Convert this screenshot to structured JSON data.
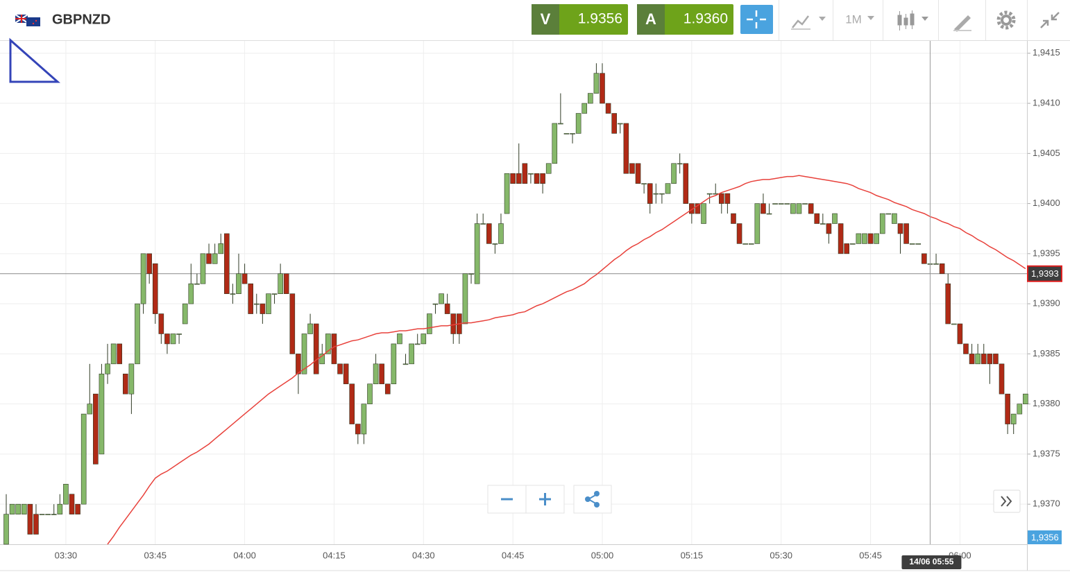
{
  "header": {
    "symbol": "GBPNZD",
    "sell_label": "V",
    "sell_price": "1.9356",
    "buy_label": "A",
    "buy_price": "1.9360",
    "timeframe": "1M"
  },
  "chart_data": {
    "type": "candlestick",
    "categories": [
      null,
      null,
      null,
      null,
      null,
      null,
      null,
      null,
      null,
      null,
      "03:30",
      null,
      null,
      null,
      null,
      null,
      null,
      null,
      null,
      null,
      null,
      null,
      null,
      null,
      null,
      "03:45",
      null,
      null,
      null,
      null,
      null,
      null,
      null,
      null,
      null,
      null,
      null,
      null,
      null,
      null,
      "04:00",
      null,
      null,
      null,
      null,
      null,
      null,
      null,
      null,
      null,
      null,
      null,
      null,
      null,
      null,
      "04:15",
      null,
      null,
      null,
      null,
      null,
      null,
      null,
      null,
      null,
      null,
      null,
      null,
      null,
      null,
      "04:30",
      null,
      null,
      null,
      null,
      null,
      null,
      null,
      null,
      null,
      null,
      null,
      null,
      null,
      null,
      "04:45",
      null,
      null,
      null,
      null,
      null,
      null,
      null,
      null,
      null,
      null,
      null,
      null,
      null,
      null,
      "05:00",
      null,
      null,
      null,
      null,
      null,
      null,
      null,
      null,
      null,
      null,
      null,
      null,
      null,
      null,
      "05:15",
      null,
      null,
      null,
      null,
      null,
      null,
      null,
      null,
      null,
      null,
      null,
      null,
      null,
      null,
      "05:30",
      null,
      null,
      null,
      null,
      null,
      null,
      null,
      null,
      null,
      null,
      null,
      null,
      null,
      null,
      "05:45",
      null,
      null,
      null,
      null,
      null,
      null,
      null,
      null,
      null,
      null,
      null,
      null,
      null,
      null,
      "06:00",
      null,
      null,
      null,
      null,
      null,
      null,
      null,
      null,
      null,
      null,
      null
    ],
    "open": [
      1.9366,
      1.9369,
      1.9369,
      1.9369,
      1.937,
      1.9369,
      1.9369,
      1.9369,
      1.9369,
      1.9369,
      1.937,
      1.9371,
      1.937,
      1.937,
      1.9379,
      1.9381,
      1.9375,
      1.9383,
      1.9384,
      1.9386,
      1.9383,
      1.9381,
      1.9384,
      1.939,
      1.9395,
      1.9394,
      1.9389,
      1.9387,
      1.9386,
      1.9387,
      1.9388,
      1.939,
      1.9392,
      1.9392,
      1.9395,
      1.9394,
      1.9395,
      1.9397,
      1.9391,
      1.9391,
      1.9393,
      1.9392,
      1.939,
      1.939,
      1.9389,
      1.9391,
      1.9391,
      1.9393,
      1.9391,
      1.9385,
      1.9383,
      1.9387,
      1.9388,
      1.9384,
      1.9385,
      1.9387,
      1.9384,
      1.9384,
      1.9382,
      1.9378,
      1.9377,
      1.938,
      1.9382,
      1.9384,
      1.9382,
      1.9382,
      1.9386,
      1.9384,
      1.9384,
      1.9386,
      1.9386,
      1.9387,
      1.939,
      1.939,
      1.939,
      1.9389,
      1.9389,
      1.9388,
      1.9393,
      1.9392,
      1.9398,
      1.9398,
      1.9396,
      1.9396,
      1.9399,
      1.9403,
      1.9403,
      1.9404,
      1.9403,
      1.9403,
      1.9403,
      1.9403,
      1.9404,
      1.9408,
      1.9407,
      1.9407,
      1.9407,
      1.9409,
      1.941,
      1.9411,
      1.9413,
      1.941,
      1.9409,
      1.9408,
      1.9408,
      1.9404,
      1.9404,
      1.9402,
      1.9402,
      1.9401,
      1.9401,
      1.9401,
      1.9402,
      1.9404,
      1.9404,
      1.94,
      1.94,
      1.9398,
      1.9401,
      1.9401,
      1.9401,
      1.9401,
      1.9399,
      1.9398,
      1.9396,
      1.9396,
      1.9396,
      1.94,
      1.9399,
      1.94,
      1.94,
      1.94,
      1.9399,
      1.9399,
      1.94,
      1.94,
      1.9399,
      1.9398,
      1.9398,
      1.9398,
      1.9398,
      1.9396,
      1.9396,
      1.9396,
      1.9396,
      1.9397,
      1.9396,
      1.9397,
      1.9399,
      1.9398,
      1.9398,
      1.9398,
      1.9396,
      1.9396,
      1.9395,
      1.9394,
      1.9394,
      1.9394,
      1.9392,
      1.9388,
      1.9388,
      1.9386,
      1.9385,
      1.9384,
      1.9385,
      1.9385,
      1.9385,
      1.9384,
      1.9381,
      1.9378,
      1.9379,
      1.938
    ],
    "high": [
      1.9371,
      1.937,
      1.937,
      1.937,
      1.937,
      1.937,
      1.9369,
      1.9369,
      1.937,
      1.9371,
      1.9372,
      1.9371,
      1.937,
      1.9379,
      1.9384,
      1.9381,
      1.9384,
      1.9386,
      1.9386,
      1.9386,
      1.9383,
      1.9384,
      1.939,
      1.9395,
      1.9395,
      1.9394,
      1.9389,
      1.9387,
      1.9387,
      1.9387,
      1.939,
      1.9394,
      1.9393,
      1.9395,
      1.9396,
      1.9396,
      1.9397,
      1.9397,
      1.9392,
      1.9395,
      1.9394,
      1.9392,
      1.9391,
      1.939,
      1.9391,
      1.9391,
      1.9394,
      1.9393,
      1.9391,
      1.9385,
      1.9387,
      1.9389,
      1.9388,
      1.9386,
      1.9387,
      1.9387,
      1.9384,
      1.9384,
      1.9382,
      1.9378,
      1.938,
      1.9382,
      1.9385,
      1.9384,
      1.9382,
      1.9386,
      1.9387,
      1.9385,
      1.9386,
      1.9387,
      1.9387,
      1.9389,
      1.939,
      1.9391,
      1.9391,
      1.9389,
      1.9389,
      1.9393,
      1.9393,
      1.9399,
      1.9399,
      1.9398,
      1.9396,
      1.9399,
      1.9403,
      1.9403,
      1.9406,
      1.9404,
      1.9403,
      1.9403,
      1.9403,
      1.9404,
      1.9408,
      1.9411,
      1.9407,
      1.9407,
      1.9409,
      1.941,
      1.9411,
      1.9414,
      1.9414,
      1.941,
      1.9409,
      1.9408,
      1.9408,
      1.9404,
      1.9404,
      1.9402,
      1.9402,
      1.9402,
      1.9401,
      1.9402,
      1.9404,
      1.9405,
      1.9404,
      1.94,
      1.94,
      1.94,
      1.9401,
      1.9402,
      1.9401,
      1.9401,
      1.9399,
      1.9398,
      1.9396,
      1.9396,
      1.94,
      1.9401,
      1.94,
      1.94,
      1.94,
      1.94,
      1.94,
      1.94,
      1.94,
      1.94,
      1.9399,
      1.9399,
      1.9398,
      1.9399,
      1.9398,
      1.9396,
      1.9396,
      1.9397,
      1.9397,
      1.9397,
      1.9397,
      1.9399,
      1.9399,
      1.9399,
      1.9398,
      1.9398,
      1.9396,
      1.9396,
      1.9395,
      1.9394,
      1.9395,
      1.9394,
      1.9393,
      1.9388,
      1.9388,
      1.9386,
      1.9386,
      1.9386,
      1.9386,
      1.9385,
      1.9385,
      1.9384,
      1.9381,
      1.9379,
      1.938,
      1.9381
    ],
    "low": [
      1.9366,
      1.9369,
      1.9369,
      1.9369,
      1.9367,
      1.9367,
      1.9369,
      1.9369,
      1.9369,
      1.9369,
      1.937,
      1.9369,
      1.9369,
      1.937,
      1.9379,
      1.9374,
      1.9375,
      1.9382,
      1.9384,
      1.9384,
      1.9381,
      1.9379,
      1.9384,
      1.9389,
      1.9392,
      1.9388,
      1.9386,
      1.9385,
      1.9386,
      1.9386,
      1.9388,
      1.939,
      1.9392,
      1.9392,
      1.9394,
      1.9394,
      1.9395,
      1.9391,
      1.939,
      1.9391,
      1.9392,
      1.9389,
      1.9389,
      1.9388,
      1.9389,
      1.939,
      1.9391,
      1.9391,
      1.9385,
      1.9381,
      1.9383,
      1.9387,
      1.9383,
      1.9384,
      1.9385,
      1.9384,
      1.9383,
      1.9382,
      1.9378,
      1.9376,
      1.9376,
      1.938,
      1.9382,
      1.9382,
      1.9381,
      1.9382,
      1.9386,
      1.9384,
      1.9384,
      1.9386,
      1.9386,
      1.9387,
      1.9389,
      1.939,
      1.9389,
      1.9386,
      1.9386,
      1.9388,
      1.9392,
      1.9392,
      1.9398,
      1.9396,
      1.9395,
      1.9396,
      1.9399,
      1.9402,
      1.9402,
      1.9402,
      1.9402,
      1.9402,
      1.9401,
      1.9403,
      1.9404,
      1.9408,
      1.9407,
      1.9406,
      1.9407,
      1.9409,
      1.941,
      1.9411,
      1.941,
      1.9409,
      1.9407,
      1.9407,
      1.9403,
      1.9403,
      1.9402,
      1.9401,
      1.9399,
      1.94,
      1.94,
      1.9401,
      1.9402,
      1.9403,
      1.94,
      1.9398,
      1.9399,
      1.9398,
      1.94,
      1.9401,
      1.9399,
      1.9399,
      1.9398,
      1.9396,
      1.9396,
      1.9396,
      1.9396,
      1.9399,
      1.9399,
      1.94,
      1.94,
      1.94,
      1.9399,
      1.9399,
      1.94,
      1.9399,
      1.9398,
      1.9398,
      1.9396,
      1.9398,
      1.9395,
      1.9395,
      1.9396,
      1.9396,
      1.9396,
      1.9396,
      1.9396,
      1.9397,
      1.9399,
      1.9398,
      1.9395,
      1.9396,
      1.9396,
      1.9396,
      1.9394,
      1.9393,
      1.9394,
      1.9393,
      1.9388,
      1.9388,
      1.9386,
      1.9385,
      1.9384,
      1.9384,
      1.9384,
      1.9382,
      1.9384,
      1.9381,
      1.9377,
      1.9377,
      1.9379,
      1.938
    ],
    "close": [
      1.9369,
      1.937,
      1.937,
      1.937,
      1.9367,
      1.9367,
      1.9369,
      1.9369,
      1.9369,
      1.937,
      1.9372,
      1.9369,
      1.9369,
      1.9379,
      1.938,
      1.9374,
      1.9383,
      1.9384,
      1.9386,
      1.9384,
      1.9381,
      1.9384,
      1.939,
      1.9395,
      1.9393,
      1.9389,
      1.9387,
      1.9386,
      1.9387,
      1.9387,
      1.939,
      1.9392,
      1.9392,
      1.9395,
      1.9394,
      1.9395,
      1.9396,
      1.9391,
      1.9391,
      1.9393,
      1.9392,
      1.9389,
      1.939,
      1.9389,
      1.9391,
      1.9391,
      1.9393,
      1.9391,
      1.9385,
      1.9383,
      1.9387,
      1.9388,
      1.9383,
      1.9385,
      1.9387,
      1.9384,
      1.9383,
      1.9382,
      1.9378,
      1.9377,
      1.938,
      1.9382,
      1.9384,
      1.9382,
      1.9381,
      1.9386,
      1.9387,
      1.9384,
      1.9386,
      1.9386,
      1.9387,
      1.9389,
      1.939,
      1.9391,
      1.9389,
      1.9387,
      1.9387,
      1.9393,
      1.9393,
      1.9398,
      1.9398,
      1.9396,
      1.9396,
      1.9398,
      1.9403,
      1.9402,
      1.9402,
      1.9402,
      1.9403,
      1.9402,
      1.9402,
      1.9404,
      1.9408,
      1.9408,
      1.9407,
      1.9407,
      1.9409,
      1.941,
      1.9411,
      1.9413,
      1.941,
      1.9409,
      1.9407,
      1.9408,
      1.9403,
      1.9403,
      1.9402,
      1.9402,
      1.94,
      1.9401,
      1.9401,
      1.9402,
      1.9404,
      1.9404,
      1.94,
      1.9399,
      1.9399,
      1.94,
      1.9401,
      1.9401,
      1.94,
      1.94,
      1.9398,
      1.9396,
      1.9396,
      1.9396,
      1.94,
      1.9399,
      1.9399,
      1.94,
      1.94,
      1.94,
      1.94,
      1.94,
      1.94,
      1.9399,
      1.9398,
      1.9398,
      1.9397,
      1.9399,
      1.9395,
      1.9395,
      1.9396,
      1.9397,
      1.9397,
      1.9396,
      1.9397,
      1.9399,
      1.9399,
      1.9399,
      1.9397,
      1.9396,
      1.9396,
      1.9396,
      1.9394,
      1.9394,
      1.9394,
      1.9393,
      1.9388,
      1.9388,
      1.9386,
      1.9385,
      1.9384,
      1.9385,
      1.9384,
      1.9384,
      1.9384,
      1.9381,
      1.9378,
      1.9379,
      1.938,
      1.9381
    ],
    "up_color": "#86b86a",
    "down_color": "#b02a16",
    "border_color": "#2f3a24",
    "lines": [
      {
        "color": "#e8413b",
        "values": [
          null,
          null,
          null,
          null,
          null,
          null,
          null,
          null,
          null,
          null,
          null,
          null,
          null,
          null,
          null,
          null,
          null,
          1.9366,
          1.93668,
          1.93677,
          1.93685,
          1.93693,
          1.93701,
          1.93709,
          1.93718,
          1.93726,
          1.9373,
          1.93733,
          1.93737,
          1.93741,
          1.93745,
          1.93749,
          1.93752,
          1.93756,
          1.9376,
          1.93765,
          1.9377,
          1.93775,
          1.9378,
          1.93785,
          1.9379,
          1.93795,
          1.938,
          1.93805,
          1.9381,
          1.93814,
          1.93818,
          1.93822,
          1.93826,
          1.93831,
          1.93835,
          1.93839,
          1.93844,
          1.93848,
          1.93853,
          1.93857,
          1.93859,
          1.93861,
          1.93863,
          1.93864,
          1.93866,
          1.93868,
          1.9387,
          1.93871,
          1.93871,
          1.93872,
          1.93873,
          1.93873,
          1.93874,
          1.93875,
          1.93875,
          1.93876,
          1.93877,
          1.93878,
          1.93878,
          1.93879,
          1.9388,
          1.93881,
          1.93881,
          1.93882,
          1.93883,
          1.93884,
          1.93886,
          1.93887,
          1.93888,
          1.93889,
          1.93891,
          1.93892,
          1.93895,
          1.93898,
          1.939,
          1.93903,
          1.93906,
          1.93909,
          1.93912,
          1.93914,
          1.93917,
          1.9392,
          1.93925,
          1.93929,
          1.93934,
          1.93939,
          1.93944,
          1.93948,
          1.93953,
          1.93957,
          1.9396,
          1.93964,
          1.93967,
          1.93971,
          1.93974,
          1.93978,
          1.93982,
          1.93986,
          1.9399,
          1.93994,
          1.93998,
          1.94002,
          1.94006,
          1.94008,
          1.94011,
          1.94013,
          1.94015,
          1.94017,
          1.9402,
          1.94022,
          1.94023,
          1.94024,
          1.94024,
          1.94025,
          1.94026,
          1.94027,
          1.94027,
          1.94028,
          1.94027,
          1.94026,
          1.94025,
          1.94024,
          1.94023,
          1.94022,
          1.94021,
          1.9402,
          1.94018,
          1.94015,
          1.94013,
          1.94011,
          1.94008,
          1.94006,
          1.94004,
          1.94001,
          1.93999,
          1.93997,
          1.93994,
          1.93992,
          1.9399,
          1.93987,
          1.93985,
          1.93982,
          1.9398,
          1.93977,
          1.93975,
          1.93971,
          1.93968,
          1.93964,
          1.93961,
          1.93957,
          1.93954,
          1.9395,
          1.93946,
          1.93943,
          1.93939,
          1.93935
        ]
      }
    ],
    "ylim": [
      1.9366,
      1.94163
    ],
    "yticks": [
      {
        "value": 1.937,
        "label": "1,9370"
      },
      {
        "value": 1.9375,
        "label": "1,9375"
      },
      {
        "value": 1.938,
        "label": "1,9380"
      },
      {
        "value": 1.9385,
        "label": "1,9385"
      },
      {
        "value": 1.939,
        "label": "1,9390"
      },
      {
        "value": 1.9395,
        "label": "1,9395"
      },
      {
        "value": 1.94,
        "label": "1,9400"
      },
      {
        "value": 1.9405,
        "label": "1,9405"
      },
      {
        "value": 1.941,
        "label": "1,9410"
      },
      {
        "value": 1.9415,
        "label": "1,9415"
      }
    ],
    "grid": true,
    "hline": {
      "value": 1.9393,
      "label": "1,9393"
    },
    "last_price": {
      "value": 1.9356,
      "label": "1,9356"
    },
    "crosshair_label": "14/06 05:55"
  }
}
